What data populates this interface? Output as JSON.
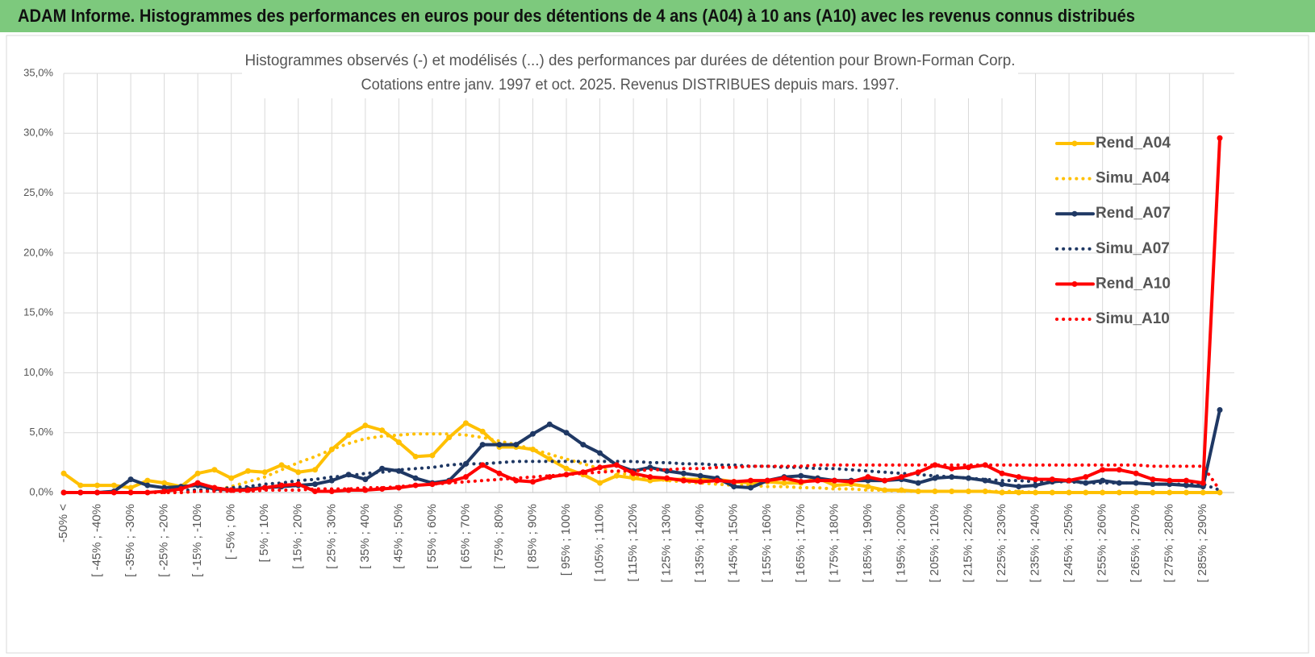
{
  "header": {
    "title": "ADAM Informe. Histogrammes des performances en euros pour des détentions de 4 ans (A04) à 10 ans (A10) avec les revenus connus distribués"
  },
  "chart_data": {
    "type": "line",
    "title": "Histogrammes observés (-) et modélisés (...) des performances par durées de détention pour Brown-Forman Corp.",
    "subtitle": "Cotations entre janv. 1997 et oct. 2025.  Revenus DISTRIBUES depuis mars. 1997.",
    "categories": [
      "-50% <",
      null,
      "[ -45% ; -40%",
      null,
      "[ -35% ; -30%",
      null,
      "[ -25% ; -20%",
      null,
      "[ -15% ; -10%",
      null,
      "[ -5% ; 0%",
      null,
      "[ 5% ; 10%",
      null,
      "[ 15% ; 20%",
      null,
      "[ 25% ; 30%",
      null,
      "[ 35% ; 40%",
      null,
      "[ 45% ; 50%",
      null,
      "[ 55% ; 60%",
      null,
      "[ 65% ; 70%",
      null,
      "[ 75% ; 80%",
      null,
      "[ 85% ; 90%",
      null,
      "[ 95% ; 100%",
      null,
      "[ 105% ; 110%",
      null,
      "[ 115% ; 120%",
      null,
      "[ 125% ; 130%",
      null,
      "[ 135% ; 140%",
      null,
      "[ 145% ; 150%",
      null,
      "[ 155% ; 160%",
      null,
      "[ 165% ; 170%",
      null,
      "[ 175% ; 180%",
      null,
      "[ 185% ; 190%",
      null,
      "[ 195% ; 200%",
      null,
      "[ 205% ; 210%",
      null,
      "[ 215% ; 220%",
      null,
      "[ 225% ; 230%",
      null,
      "[ 235% ; 240%",
      null,
      "[ 245% ; 250%",
      null,
      "[ 255% ; 260%",
      null,
      "[ 265% ; 270%",
      null,
      "[ 275% ; 280%",
      null,
      "[ 285% ; 290%",
      null
    ],
    "series": [
      {
        "name": "Rend_A04",
        "color": "#ffc000",
        "line_style": "solid",
        "values": [
          1.6,
          0.6,
          0.6,
          0.6,
          0.4,
          1.0,
          0.8,
          0.5,
          1.6,
          1.9,
          1.2,
          1.8,
          1.7,
          2.3,
          1.7,
          1.9,
          3.6,
          4.8,
          5.6,
          5.2,
          4.2,
          3.0,
          3.1,
          4.6,
          5.8,
          5.1,
          3.8,
          3.8,
          3.6,
          2.8,
          2.0,
          1.5,
          0.8,
          1.4,
          1.2,
          1.0,
          1.1,
          1.1,
          1.1,
          1.1,
          0.9,
          0.8,
          0.9,
          0.8,
          0.8,
          1.2,
          0.6,
          0.7,
          0.5,
          0.2,
          0.2,
          0.1,
          0.1,
          0.1,
          0.1,
          0.1,
          0,
          0,
          0,
          0,
          0,
          0,
          0,
          0,
          0,
          0,
          0,
          0,
          0,
          0
        ]
      },
      {
        "name": "Simu_A04",
        "color": "#ffc000",
        "line_style": "dotted",
        "values": [
          0,
          0,
          0,
          0,
          0,
          0,
          0,
          0,
          0.1,
          0.2,
          0.5,
          0.9,
          1.3,
          1.9,
          2.5,
          3.0,
          3.6,
          4.1,
          4.5,
          4.7,
          4.8,
          4.9,
          4.9,
          4.9,
          4.8,
          4.6,
          4.3,
          4.0,
          3.6,
          3.2,
          2.8,
          2.4,
          2.0,
          1.7,
          1.4,
          1.2,
          1.0,
          0.9,
          0.8,
          0.7,
          0.6,
          0.6,
          0.5,
          0.5,
          0.4,
          0.4,
          0.3,
          0.3,
          0.2,
          0.2,
          0.1,
          0.1,
          0.1,
          0.1,
          0.1,
          0.1,
          0.1,
          0.1,
          0,
          0,
          0,
          0,
          0,
          0,
          0,
          0,
          0,
          0,
          0,
          0
        ]
      },
      {
        "name": "Rend_A07",
        "color": "#1f3864",
        "line_style": "solid",
        "values": [
          0,
          0,
          0,
          0.1,
          1.1,
          0.6,
          0.4,
          0.5,
          0.6,
          0.3,
          0.2,
          0.3,
          0.4,
          0.5,
          0.6,
          0.7,
          1.0,
          1.5,
          1.1,
          2.0,
          1.8,
          1.2,
          0.8,
          1.0,
          2.4,
          4.0,
          4.0,
          4.0,
          4.9,
          5.7,
          5.0,
          4.0,
          3.3,
          2.3,
          1.8,
          2.1,
          1.8,
          1.6,
          1.4,
          1.2,
          0.5,
          0.4,
          1.0,
          1.3,
          1.4,
          1.2,
          1.0,
          1.0,
          1.0,
          1.0,
          1.1,
          0.8,
          1.2,
          1.3,
          1.2,
          1.0,
          0.7,
          0.5,
          0.6,
          0.9,
          1.0,
          0.8,
          1.0,
          0.8,
          0.8,
          0.7,
          0.7,
          0.6,
          0.5,
          6.9
        ]
      },
      {
        "name": "Simu_A07",
        "color": "#1f3864",
        "line_style": "dotted",
        "values": [
          0,
          0,
          0,
          0,
          0,
          0,
          0.1,
          0.2,
          0.2,
          0.3,
          0.4,
          0.5,
          0.7,
          0.8,
          1.0,
          1.1,
          1.3,
          1.4,
          1.6,
          1.7,
          1.9,
          2.0,
          2.1,
          2.3,
          2.4,
          2.4,
          2.5,
          2.6,
          2.6,
          2.6,
          2.6,
          2.6,
          2.6,
          2.6,
          2.6,
          2.5,
          2.5,
          2.4,
          2.4,
          2.3,
          2.3,
          2.2,
          2.2,
          2.1,
          2.1,
          2.0,
          2.0,
          1.9,
          1.8,
          1.7,
          1.6,
          1.5,
          1.4,
          1.3,
          1.2,
          1.1,
          1.0,
          1.0,
          0.9,
          0.9,
          0.9,
          0.8,
          0.8,
          0.8,
          0.8,
          0.7,
          0.7,
          0.7,
          0.7,
          0.2
        ]
      },
      {
        "name": "Rend_A10",
        "color": "#ff0000",
        "line_style": "solid",
        "values": [
          0,
          0,
          0,
          0,
          0,
          0,
          0.1,
          0.3,
          0.8,
          0.4,
          0.2,
          0.2,
          0.4,
          0.6,
          0.7,
          0.1,
          0.1,
          0.2,
          0.2,
          0.3,
          0.4,
          0.6,
          0.7,
          0.9,
          1.3,
          2.3,
          1.6,
          1.0,
          0.9,
          1.3,
          1.5,
          1.7,
          2.1,
          2.3,
          1.6,
          1.3,
          1.2,
          1.0,
          0.9,
          1.0,
          0.9,
          1.0,
          1.0,
          1.2,
          0.9,
          1.0,
          1.0,
          0.9,
          1.3,
          1.0,
          1.3,
          1.7,
          2.3,
          2.0,
          2.1,
          2.3,
          1.6,
          1.3,
          1.1,
          1.1,
          1.0,
          1.3,
          1.9,
          1.9,
          1.6,
          1.1,
          1.0,
          1.0,
          0.8,
          29.6
        ]
      },
      {
        "name": "Simu_A10",
        "color": "#ff0000",
        "line_style": "dotted",
        "values": [
          0,
          0,
          0,
          0,
          0,
          0,
          0,
          0,
          0.1,
          0.1,
          0.1,
          0.1,
          0.2,
          0.2,
          0.2,
          0.3,
          0.3,
          0.3,
          0.4,
          0.4,
          0.5,
          0.6,
          0.7,
          0.8,
          0.9,
          1.0,
          1.1,
          1.2,
          1.3,
          1.4,
          1.5,
          1.6,
          1.7,
          1.8,
          1.8,
          1.9,
          1.9,
          2.0,
          2.0,
          2.1,
          2.1,
          2.2,
          2.2,
          2.2,
          2.2,
          2.3,
          2.3,
          2.3,
          2.3,
          2.3,
          2.3,
          2.3,
          2.3,
          2.3,
          2.3,
          2.3,
          2.3,
          2.3,
          2.3,
          2.3,
          2.3,
          2.3,
          2.3,
          2.3,
          2.3,
          2.2,
          2.2,
          2.2,
          2.2,
          0.2
        ]
      }
    ],
    "ylim": [
      0,
      35
    ],
    "yticks": [
      {
        "value": 0,
        "label": "0,0%"
      },
      {
        "value": 5,
        "label": "5,0%"
      },
      {
        "value": 10,
        "label": "10,0%"
      },
      {
        "value": 15,
        "label": "15,0%"
      },
      {
        "value": 20,
        "label": "20,0%"
      },
      {
        "value": 25,
        "label": "25,0%"
      },
      {
        "value": 30,
        "label": "30,0%"
      },
      {
        "value": 35,
        "label": "35,0%"
      }
    ],
    "grid": true,
    "legend": "right"
  }
}
